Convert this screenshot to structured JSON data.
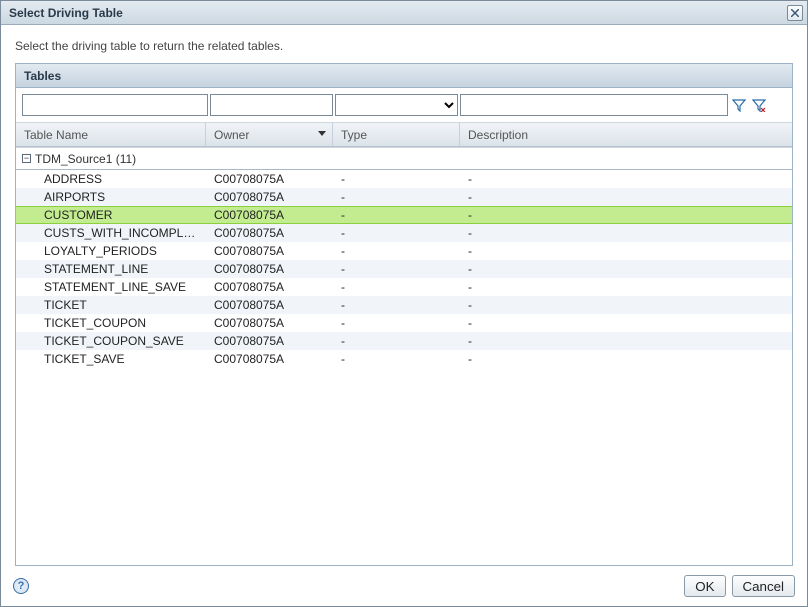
{
  "dialog": {
    "title": "Select Driving Table",
    "instruction": "Select the driving table to return the related tables."
  },
  "panel": {
    "title": "Tables"
  },
  "columns": {
    "widths": [
      190,
      127,
      127,
      290
    ],
    "headers": [
      "Table Name",
      "Owner",
      "Type",
      "Description"
    ],
    "sort_indicator_index": 1
  },
  "filters": {
    "name_value": "",
    "owner_value": "",
    "type_value": "",
    "description_value": ""
  },
  "group": {
    "label": "TDM_Source1 (11)",
    "expanded": true
  },
  "rows": [
    {
      "name": "ADDRESS",
      "owner": "C00708075A",
      "type": "-",
      "description": "-",
      "selected": false
    },
    {
      "name": "AIRPORTS",
      "owner": "C00708075A",
      "type": "-",
      "description": "-",
      "selected": false
    },
    {
      "name": "CUSTOMER",
      "owner": "C00708075A",
      "type": "-",
      "description": "-",
      "selected": true
    },
    {
      "name": "CUSTS_WITH_INCOMPLETE_…",
      "owner": "C00708075A",
      "type": "-",
      "description": "-",
      "selected": false
    },
    {
      "name": "LOYALTY_PERIODS",
      "owner": "C00708075A",
      "type": "-",
      "description": "-",
      "selected": false
    },
    {
      "name": "STATEMENT_LINE",
      "owner": "C00708075A",
      "type": "-",
      "description": "-",
      "selected": false
    },
    {
      "name": "STATEMENT_LINE_SAVE",
      "owner": "C00708075A",
      "type": "-",
      "description": "-",
      "selected": false
    },
    {
      "name": "TICKET",
      "owner": "C00708075A",
      "type": "-",
      "description": "-",
      "selected": false
    },
    {
      "name": "TICKET_COUPON",
      "owner": "C00708075A",
      "type": "-",
      "description": "-",
      "selected": false
    },
    {
      "name": "TICKET_COUPON_SAVE",
      "owner": "C00708075A",
      "type": "-",
      "description": "-",
      "selected": false
    },
    {
      "name": "TICKET_SAVE",
      "owner": "C00708075A",
      "type": "-",
      "description": "-",
      "selected": false
    }
  ],
  "buttons": {
    "ok": "OK",
    "cancel": "Cancel"
  },
  "colors": {
    "row_even_bg": "#f1f5f9",
    "row_odd_bg": "#ffffff",
    "selected_bg": "#c3ec91",
    "selected_border": "#8bcf3e",
    "header_grad_top": "#e2eaf1",
    "header_grad_bot": "#c5d3df",
    "dialog_border": "#7a8a99"
  }
}
